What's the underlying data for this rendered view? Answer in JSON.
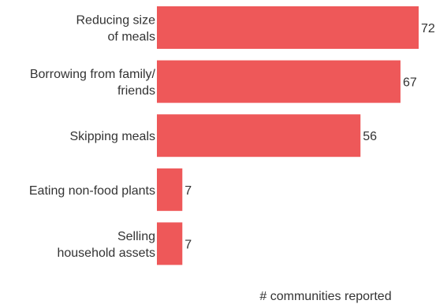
{
  "chart_data": {
    "type": "bar",
    "orientation": "horizontal",
    "categories": [
      [
        "Reducing size",
        "of meals"
      ],
      [
        "Borrowing from family/",
        "friends"
      ],
      [
        "Skipping meals"
      ],
      [
        "Eating non-food plants"
      ],
      [
        "Selling",
        "household assets"
      ]
    ],
    "values": [
      72,
      67,
      56,
      7,
      7
    ],
    "xlabel": "# communities reported",
    "ylabel": "",
    "title": "",
    "xlim": [
      0,
      72
    ],
    "grid": false,
    "legend": "none",
    "colors": {
      "bar": "#ee5859",
      "text": "#333333"
    }
  }
}
